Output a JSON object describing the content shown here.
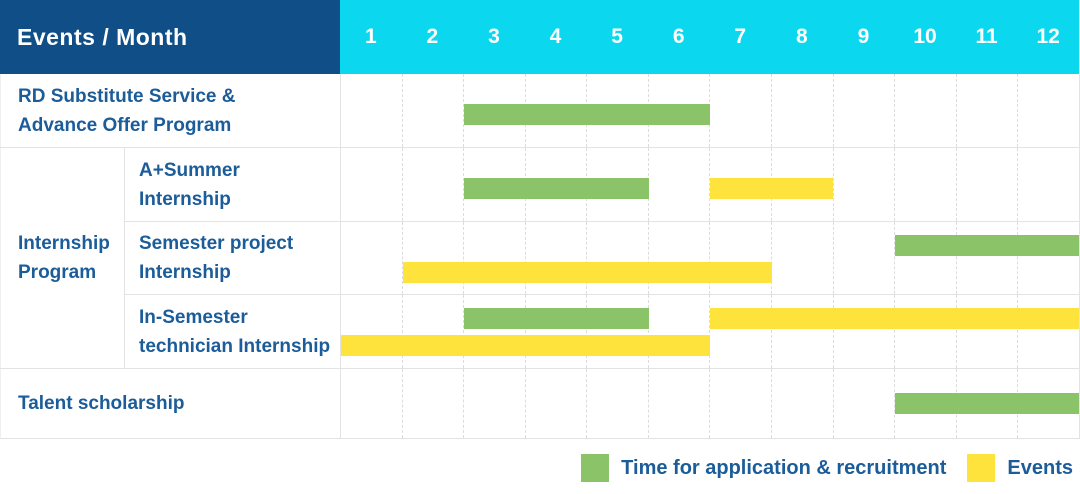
{
  "colors": {
    "header_bg": "#0F4E87",
    "months_bg": "#0BD8EF",
    "label_blue": "#1B5C99",
    "green": "#8BC369",
    "yellow": "#FDE33C",
    "grid_line": "#E3E3E3",
    "grid_dash": "#DCDCDC"
  },
  "header": {
    "label": "Events / Month",
    "months": [
      "1",
      "2",
      "3",
      "4",
      "5",
      "6",
      "7",
      "8",
      "9",
      "10",
      "11",
      "12"
    ]
  },
  "group": {
    "label": "Internship\nProgram"
  },
  "rows": [
    {
      "label": "RD Substitute Service &\nAdvance Offer Program",
      "bars": [
        {
          "type": "application",
          "start": 3,
          "end": 6,
          "track": "single"
        }
      ]
    },
    {
      "label": "A+Summer\nInternship",
      "bars": [
        {
          "type": "application",
          "start": 3,
          "end": 5,
          "track": "single"
        },
        {
          "type": "events",
          "start": 7,
          "end": 8,
          "track": "single"
        }
      ]
    },
    {
      "label": "Semester project\nInternship",
      "bars": [
        {
          "type": "application",
          "start": 10,
          "end": 12,
          "track": "top"
        },
        {
          "type": "events",
          "start": 2,
          "end": 7,
          "track": "bottom"
        }
      ]
    },
    {
      "label": "In-Semester\ntechnician Internship",
      "bars": [
        {
          "type": "application",
          "start": 3,
          "end": 5,
          "track": "top"
        },
        {
          "type": "events",
          "start": 7,
          "end": 12,
          "track": "top"
        },
        {
          "type": "events",
          "start": 1,
          "end": 6,
          "track": "bottom"
        }
      ]
    },
    {
      "label": "Talent scholarship",
      "bars": [
        {
          "type": "application",
          "start": 10,
          "end": 12,
          "track": "single"
        }
      ]
    }
  ],
  "legend": {
    "items": [
      {
        "type": "application",
        "label": "Time for application & recruitment"
      },
      {
        "type": "events",
        "label": "Events"
      }
    ]
  },
  "chart_data": {
    "type": "bar",
    "subtype": "gantt",
    "title": "Events / Month",
    "xlabel": "Month",
    "x_ticks": [
      1,
      2,
      3,
      4,
      5,
      6,
      7,
      8,
      9,
      10,
      11,
      12
    ],
    "xlim": [
      1,
      12
    ],
    "grid": true,
    "legend_position": "bottom-right",
    "series_colors": {
      "Time for application & recruitment": "#8BC369",
      "Events": "#FDE33C"
    },
    "rows": [
      {
        "task": "RD Substitute Service & Advance Offer Program",
        "group": null,
        "bars": [
          {
            "series": "Time for application & recruitment",
            "start_month": 3,
            "end_month": 6
          }
        ]
      },
      {
        "task": "A+Summer Internship",
        "group": "Internship Program",
        "bars": [
          {
            "series": "Time for application & recruitment",
            "start_month": 3,
            "end_month": 5
          },
          {
            "series": "Events",
            "start_month": 7,
            "end_month": 8
          }
        ]
      },
      {
        "task": "Semester project Internship",
        "group": "Internship Program",
        "bars": [
          {
            "series": "Time for application & recruitment",
            "start_month": 10,
            "end_month": 12
          },
          {
            "series": "Events",
            "start_month": 2,
            "end_month": 7
          }
        ]
      },
      {
        "task": "In-Semester technician Internship",
        "group": "Internship Program",
        "bars": [
          {
            "series": "Time for application & recruitment",
            "start_month": 3,
            "end_month": 5
          },
          {
            "series": "Events",
            "start_month": 7,
            "end_month": 12
          },
          {
            "series": "Events",
            "start_month": 1,
            "end_month": 6
          }
        ]
      },
      {
        "task": "Talent scholarship",
        "group": null,
        "bars": [
          {
            "series": "Time for application & recruitment",
            "start_month": 10,
            "end_month": 12
          }
        ]
      }
    ]
  }
}
